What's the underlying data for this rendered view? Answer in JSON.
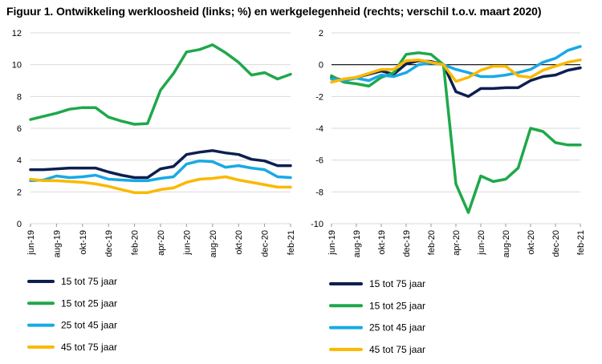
{
  "title": "Figuur 1.  Ontwikkeling werkloosheid (links; %) en werkgelegenheid (rechts; verschil t.o.v. maart 2020)",
  "chart_data": [
    {
      "type": "line",
      "title": "",
      "xlabel": "",
      "ylabel": "",
      "ylim": [
        0,
        12
      ],
      "yticks": [
        0,
        2,
        4,
        6,
        8,
        10,
        12
      ],
      "grid": "horizontal",
      "legend_position": "below",
      "x": [
        "jun-19",
        "jul-19",
        "aug-19",
        "sep-19",
        "okt-19",
        "nov-19",
        "dec-19",
        "jan-20",
        "feb-20",
        "mrt-20",
        "apr-20",
        "mei-20",
        "jun-20",
        "jul-20",
        "aug-20",
        "sep-20",
        "okt-20",
        "nov-20",
        "dec-20",
        "jan-21",
        "feb-21"
      ],
      "xtick_labels": [
        "jun-19",
        "aug-19",
        "okt-19",
        "dec-19",
        "feb-20",
        "apr-20",
        "jun-20",
        "aug-20",
        "okt-20",
        "dec-20",
        "feb-21"
      ],
      "series": [
        {
          "name": "15 tot 75 jaar",
          "color": "#0d1f4f",
          "values": [
            3.4,
            3.4,
            3.45,
            3.5,
            3.5,
            3.5,
            3.25,
            3.05,
            2.9,
            2.9,
            3.45,
            3.6,
            4.35,
            4.5,
            4.6,
            4.45,
            4.35,
            4.05,
            3.95,
            3.65,
            3.65
          ]
        },
        {
          "name": "15 tot 25 jaar",
          "color": "#1fa84a",
          "values": [
            6.55,
            6.75,
            6.95,
            7.2,
            7.3,
            7.3,
            6.7,
            6.45,
            6.25,
            6.3,
            8.4,
            9.45,
            10.8,
            10.95,
            11.25,
            10.75,
            10.15,
            9.35,
            9.5,
            9.1,
            9.4
          ]
        },
        {
          "name": "25 tot 45 jaar",
          "color": "#18a9e6",
          "values": [
            2.7,
            2.75,
            3.0,
            2.9,
            2.95,
            3.05,
            2.8,
            2.75,
            2.7,
            2.7,
            2.85,
            2.95,
            3.75,
            3.95,
            3.9,
            3.55,
            3.65,
            3.5,
            3.4,
            2.95,
            2.9
          ]
        },
        {
          "name": "45 tot 75 jaar",
          "color": "#fbb800",
          "values": [
            2.8,
            2.7,
            2.7,
            2.65,
            2.6,
            2.5,
            2.35,
            2.15,
            1.95,
            1.95,
            2.15,
            2.25,
            2.6,
            2.8,
            2.85,
            2.95,
            2.75,
            2.6,
            2.45,
            2.3,
            2.3
          ]
        }
      ]
    },
    {
      "type": "line",
      "title": "",
      "xlabel": "",
      "ylabel": "",
      "ylim": [
        -10,
        2
      ],
      "yticks": [
        -10,
        -8,
        -6,
        -4,
        -2,
        0,
        2
      ],
      "grid": "horizontal",
      "zero_line": true,
      "legend_position": "below",
      "x": [
        "jun-19",
        "jul-19",
        "aug-19",
        "sep-19",
        "okt-19",
        "nov-19",
        "dec-19",
        "jan-20",
        "feb-20",
        "mrt-20",
        "apr-20",
        "mei-20",
        "jun-20",
        "jul-20",
        "aug-20",
        "sep-20",
        "okt-20",
        "nov-20",
        "dec-20",
        "jan-21",
        "feb-21"
      ],
      "xtick_labels": [
        "jun-19",
        "aug-19",
        "okt-19",
        "dec-19",
        "feb-20",
        "apr-20",
        "jun-20",
        "aug-20",
        "okt-20",
        "dec-20",
        "feb-21"
      ],
      "series": [
        {
          "name": "15 tot 75 jaar",
          "color": "#0d1f4f",
          "values": [
            -0.8,
            -1.0,
            -0.8,
            -0.6,
            -0.4,
            -0.6,
            0.05,
            0.25,
            0.2,
            0.0,
            -1.7,
            -2.0,
            -1.5,
            -1.5,
            -1.45,
            -1.45,
            -1.0,
            -0.75,
            -0.65,
            -0.35,
            -0.2
          ]
        },
        {
          "name": "15 tot 25 jaar",
          "color": "#1fa84a",
          "values": [
            -0.7,
            -1.1,
            -1.2,
            -1.35,
            -0.8,
            -0.5,
            0.65,
            0.75,
            0.65,
            0.0,
            -7.5,
            -9.3,
            -7.0,
            -7.35,
            -7.2,
            -6.5,
            -4.0,
            -4.2,
            -4.9,
            -5.05,
            -5.05
          ]
        },
        {
          "name": "25 tot 45 jaar",
          "color": "#18a9e6",
          "values": [
            -0.9,
            -1.0,
            -0.85,
            -1.0,
            -0.65,
            -0.75,
            -0.5,
            0.0,
            0.1,
            0.0,
            -0.3,
            -0.5,
            -0.75,
            -0.75,
            -0.65,
            -0.5,
            -0.3,
            0.15,
            0.4,
            0.9,
            1.15
          ]
        },
        {
          "name": "45 tot 75 jaar",
          "color": "#fbb800",
          "values": [
            -1.1,
            -0.9,
            -0.8,
            -0.55,
            -0.3,
            -0.3,
            0.25,
            0.3,
            0.15,
            0.0,
            -1.05,
            -0.8,
            -0.35,
            -0.1,
            -0.1,
            -0.7,
            -0.8,
            -0.35,
            -0.1,
            0.15,
            0.3
          ]
        }
      ]
    }
  ]
}
